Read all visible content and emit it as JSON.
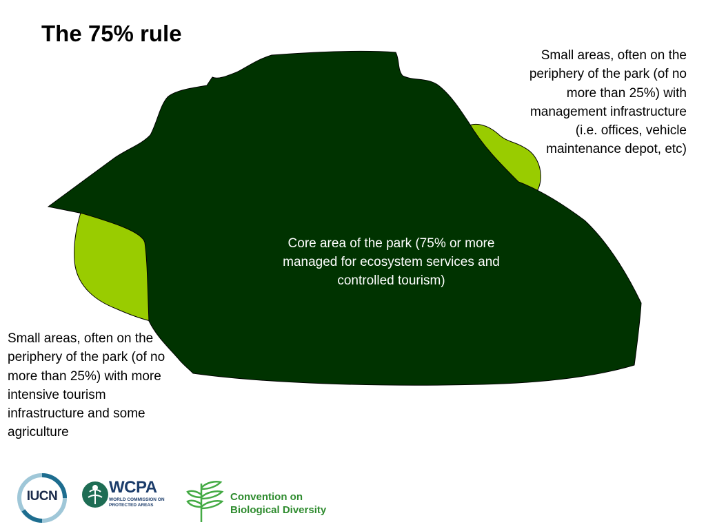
{
  "slide": {
    "title": "The 75% rule"
  },
  "diagram": {
    "core_label": "Core area of the park (75% or more managed for ecosystem services and controlled tourism)",
    "right_note": "Small areas, often on the periphery of the park (of no more than 25%) with management infrastructure (i.e. offices, vehicle maintenance depot, etc)",
    "left_note": "Small areas, often on the periphery of the park (of no more than 25%)  with more intensive tourism infrastructure and some agriculture",
    "colors": {
      "core": "#003300",
      "periphery": "#99cc00"
    }
  },
  "logos": {
    "iucn": "IUCN",
    "wcpa": "WCPA",
    "wcpa_sub": "WORLD COMMISSION ON PROTECTED AREAS",
    "cbd": "Convention on Biological Diversity"
  }
}
